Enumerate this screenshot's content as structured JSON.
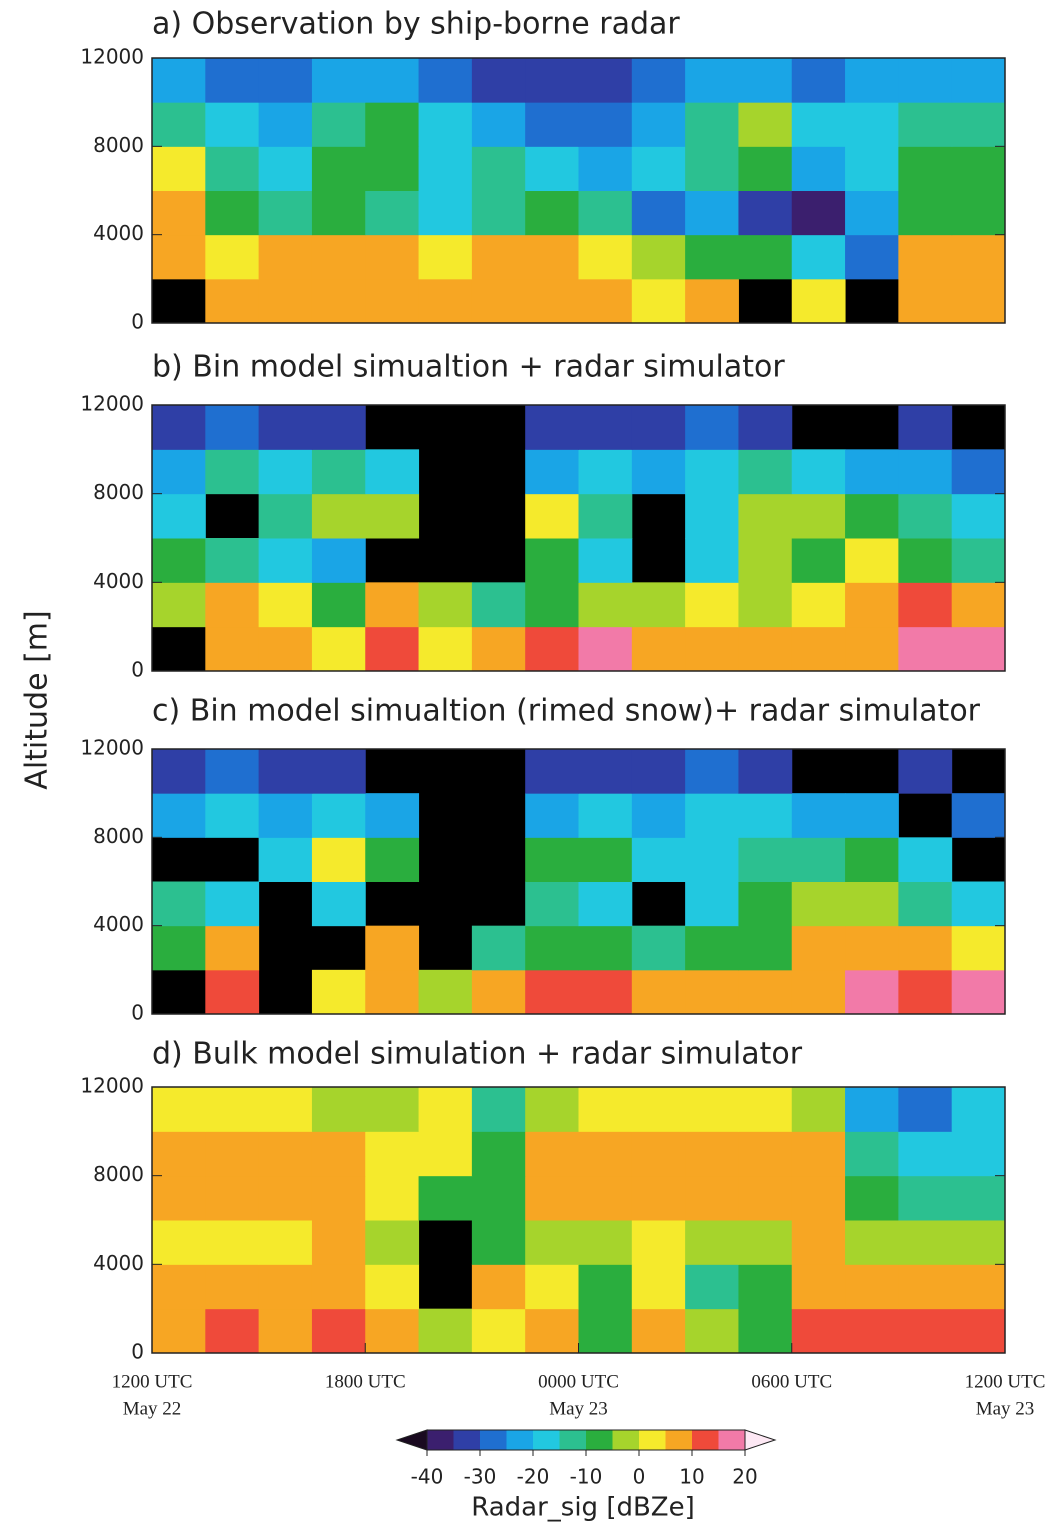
{
  "chart_data": [
    {
      "type": "heatmap",
      "title": "a) Observation by ship-borne radar",
      "xbins": [
        0,
        1.5,
        3,
        4.5,
        6,
        7.5,
        9,
        10.5,
        12,
        13.5,
        15,
        16.5,
        18,
        19.5,
        21,
        22.5,
        24
      ],
      "ybins": [
        0,
        2000,
        4000,
        6000,
        8000,
        10000,
        12000
      ],
      "ylim": [
        0,
        12000
      ],
      "yticks": [
        0,
        4000,
        8000,
        12000
      ],
      "xlim": [
        0,
        24
      ],
      "values": [
        [
          null,
          5,
          5,
          8,
          8,
          5,
          8,
          8,
          5,
          0,
          5,
          null,
          0,
          null,
          8,
          5
        ],
        [
          8,
          0,
          5,
          5,
          5,
          0,
          5,
          5,
          0,
          -5,
          -10,
          -10,
          -20,
          -30,
          5,
          5
        ],
        [
          5,
          -10,
          -15,
          -10,
          -15,
          -20,
          -15,
          -10,
          -15,
          -30,
          -25,
          -35,
          -40,
          -25,
          -10,
          -10
        ],
        [
          0,
          -15,
          -20,
          -10,
          -10,
          -20,
          -15,
          -20,
          -25,
          -20,
          -15,
          -10,
          -25,
          -20,
          -10,
          -10
        ],
        [
          -15,
          -20,
          -25,
          -15,
          -10,
          -20,
          -25,
          -30,
          -30,
          -25,
          -15,
          -5,
          -20,
          -20,
          -15,
          -15
        ],
        [
          -25,
          -30,
          -30,
          -25,
          -25,
          -30,
          -35,
          -35,
          -35,
          -30,
          -25,
          -25,
          -30,
          -25,
          -25,
          -25
        ]
      ]
    },
    {
      "type": "heatmap",
      "title": "b) Bin model simualtion + radar simulator",
      "xbins": [
        0,
        1.5,
        3,
        4.5,
        6,
        7.5,
        9,
        10.5,
        12,
        13.5,
        15,
        16.5,
        18,
        19.5,
        21,
        22.5,
        24
      ],
      "ybins": [
        0,
        2000,
        4000,
        6000,
        8000,
        10000,
        12000
      ],
      "ylim": [
        0,
        12000
      ],
      "yticks": [
        0,
        4000,
        8000,
        12000
      ],
      "xlim": [
        0,
        24
      ],
      "values": [
        [
          null,
          8,
          5,
          0,
          10,
          0,
          5,
          12,
          15,
          5,
          8,
          5,
          5,
          8,
          15,
          18
        ],
        [
          -5,
          5,
          0,
          -10,
          5,
          -5,
          -15,
          -10,
          -5,
          -5,
          0,
          -5,
          0,
          5,
          10,
          5
        ],
        [
          -10,
          -15,
          -20,
          -25,
          null,
          null,
          null,
          -10,
          -20,
          null,
          -20,
          -5,
          -10,
          0,
          -10,
          -15
        ],
        [
          -20,
          null,
          -15,
          -5,
          -5,
          null,
          null,
          0,
          -15,
          null,
          -20,
          -5,
          -5,
          -10,
          -15,
          -20
        ],
        [
          -25,
          -15,
          -20,
          -15,
          -20,
          null,
          null,
          -25,
          -20,
          -25,
          -20,
          -15,
          -20,
          -25,
          -25,
          -30
        ],
        [
          -35,
          -30,
          -35,
          -35,
          null,
          null,
          null,
          -35,
          -35,
          -35,
          -30,
          -35,
          null,
          null,
          -35,
          null
        ]
      ]
    },
    {
      "type": "heatmap",
      "title": "c) Bin model simualtion (rimed snow)+ radar simulator",
      "xbins": [
        0,
        1.5,
        3,
        4.5,
        6,
        7.5,
        9,
        10.5,
        12,
        13.5,
        15,
        16.5,
        18,
        19.5,
        21,
        22.5,
        24
      ],
      "ybins": [
        0,
        2000,
        4000,
        6000,
        8000,
        10000,
        12000
      ],
      "ylim": [
        0,
        12000
      ],
      "yticks": [
        0,
        4000,
        8000,
        12000
      ],
      "xlim": [
        0,
        24
      ],
      "values": [
        [
          null,
          10,
          null,
          0,
          8,
          -5,
          5,
          10,
          12,
          5,
          5,
          5,
          8,
          15,
          12,
          15
        ],
        [
          -10,
          5,
          null,
          null,
          5,
          null,
          -15,
          -10,
          -10,
          -15,
          -10,
          -10,
          5,
          5,
          5,
          0
        ],
        [
          -15,
          -20,
          null,
          -20,
          null,
          null,
          null,
          -15,
          -20,
          null,
          -20,
          -10,
          -5,
          -5,
          -15,
          -20
        ],
        [
          null,
          null,
          -20,
          0,
          -10,
          null,
          null,
          -10,
          -10,
          -20,
          -20,
          -15,
          -15,
          -10,
          -20,
          null
        ],
        [
          -25,
          -20,
          -25,
          -20,
          -25,
          null,
          null,
          -25,
          -20,
          -25,
          -20,
          -20,
          -25,
          -25,
          null,
          -30
        ],
        [
          -35,
          -30,
          -35,
          -35,
          null,
          null,
          null,
          -35,
          -35,
          -35,
          -30,
          -35,
          null,
          null,
          -35,
          null
        ]
      ]
    },
    {
      "type": "heatmap",
      "title": "d) Bulk model simulation + radar simulator",
      "xbins": [
        0,
        1.5,
        3,
        4.5,
        6,
        7.5,
        9,
        10.5,
        12,
        13.5,
        15,
        16.5,
        18,
        19.5,
        21,
        22.5,
        24
      ],
      "ybins": [
        0,
        2000,
        4000,
        6000,
        8000,
        10000,
        12000
      ],
      "ylim": [
        0,
        12000
      ],
      "yticks": [
        0,
        4000,
        8000,
        12000
      ],
      "xlim": [
        0,
        24
      ],
      "xticks": [
        {
          "value": 0,
          "label": "1200 UTC"
        },
        {
          "value": 6,
          "label": "1800 UTC"
        },
        {
          "value": 12,
          "label": "0000 UTC"
        },
        {
          "value": 18,
          "label": "0600 UTC"
        },
        {
          "value": 24,
          "label": "1200 UTC"
        }
      ],
      "xtick_dates": [
        "May 22",
        null,
        "May 23",
        null,
        "May 23"
      ],
      "values": [
        [
          8,
          10,
          8,
          10,
          5,
          -5,
          0,
          5,
          -10,
          5,
          -5,
          -10,
          12,
          12,
          12,
          12
        ],
        [
          5,
          8,
          5,
          8,
          0,
          null,
          5,
          0,
          -10,
          0,
          -15,
          -10,
          8,
          5,
          5,
          5
        ],
        [
          0,
          0,
          0,
          5,
          -5,
          null,
          -10,
          -5,
          -5,
          0,
          -5,
          -5,
          5,
          -5,
          -5,
          -5
        ],
        [
          5,
          8,
          8,
          8,
          0,
          -10,
          -10,
          5,
          5,
          8,
          8,
          8,
          5,
          -10,
          -15,
          -15
        ],
        [
          5,
          5,
          5,
          5,
          0,
          0,
          -10,
          5,
          8,
          8,
          8,
          8,
          5,
          -15,
          -20,
          -20
        ],
        [
          0,
          0,
          0,
          -5,
          -5,
          0,
          -15,
          -5,
          0,
          0,
          0,
          0,
          -5,
          -25,
          -30,
          -20
        ]
      ]
    }
  ],
  "ylabel": "Altitude [m]",
  "colorbar": {
    "label": "Radar_sig [dBZe]",
    "bounds": [
      -40,
      -35,
      -30,
      -25,
      -20,
      -15,
      -10,
      -5,
      0,
      5,
      10,
      15,
      20
    ],
    "colors": [
      "#3b1f6e",
      "#2f3fa6",
      "#1f6fd0",
      "#1aa5e6",
      "#22c8e0",
      "#2cc090",
      "#2aae3e",
      "#a6d42c",
      "#f5ea2c",
      "#f7a623",
      "#ef4a3a",
      "#f27aa8"
    ],
    "under_color": "#1a0a20",
    "over_color": "#fde8f4",
    "no_echo_color": "#000000",
    "ticks": [
      -40,
      -30,
      -20,
      -10,
      0,
      10,
      20
    ]
  }
}
